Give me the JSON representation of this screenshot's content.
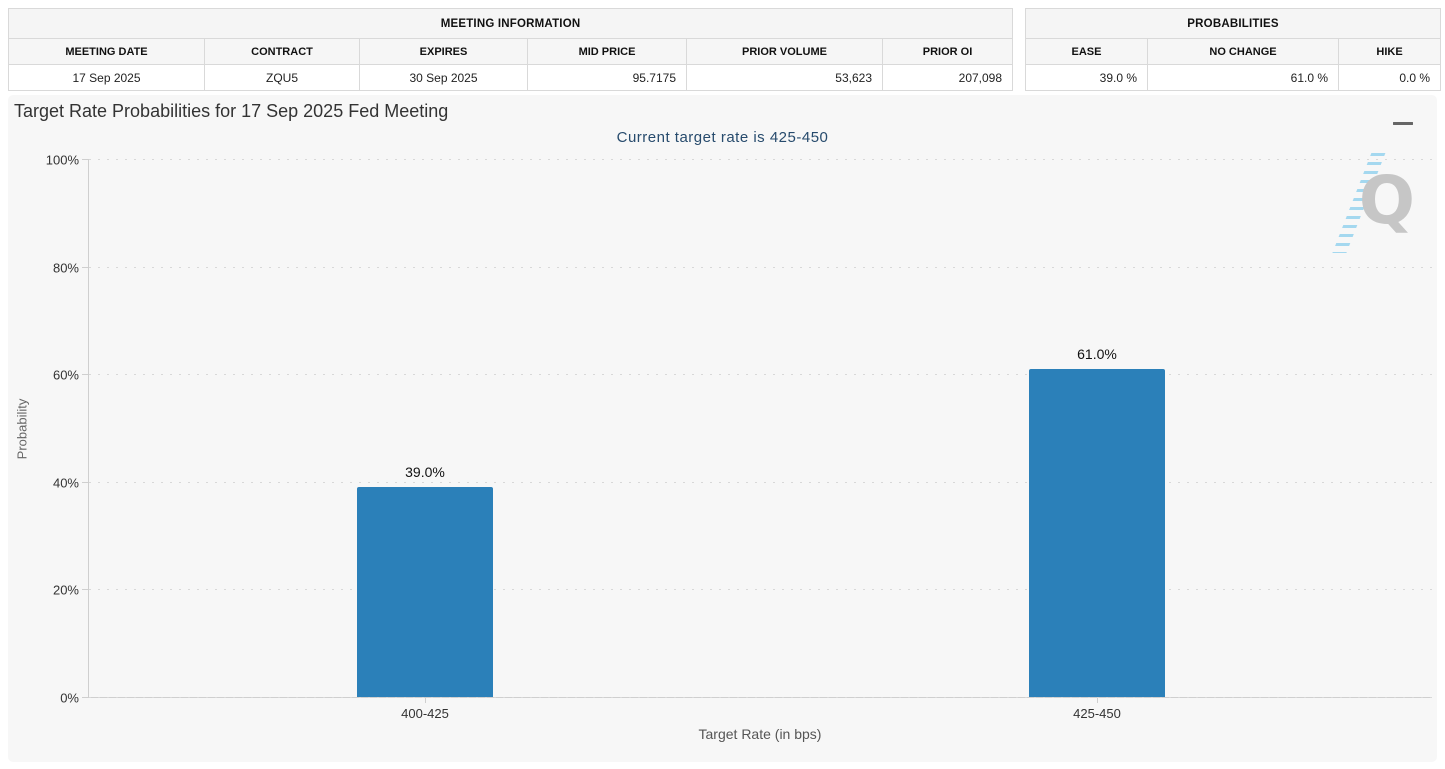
{
  "meeting_information": {
    "title": "MEETING INFORMATION",
    "columns": [
      "MEETING DATE",
      "CONTRACT",
      "EXPIRES",
      "MID PRICE",
      "PRIOR VOLUME",
      "PRIOR OI"
    ],
    "values": [
      "17 Sep 2025",
      "ZQU5",
      "30 Sep 2025",
      "95.7175",
      "53,623",
      "207,098"
    ]
  },
  "probabilities": {
    "title": "PROBABILITIES",
    "columns": [
      "EASE",
      "NO CHANGE",
      "HIKE"
    ],
    "values": [
      "39.0 %",
      "61.0 %",
      "0.0 %"
    ]
  },
  "chart_data": {
    "type": "bar",
    "title": "Target Rate Probabilities for 17 Sep 2025 Fed Meeting",
    "subtitle": "Current target rate is 425-450",
    "categories": [
      "400-425",
      "425-450"
    ],
    "values": [
      39.0,
      61.0
    ],
    "data_labels": [
      "39.0%",
      "61.0%"
    ],
    "xlabel": "Target Rate (in bps)",
    "ylabel": "Probability",
    "ylim": [
      0,
      100
    ],
    "ytick_labels": [
      "0%",
      "20%",
      "40%",
      "60%",
      "80%",
      "100%"
    ],
    "grid": "dotted-horizontal",
    "legend": "none",
    "bar_color": "#2b80b9"
  },
  "icons": {
    "export_menu": "hamburger-icon",
    "watermark_letter": "Q"
  },
  "colors": {
    "bar": "#2b80b9",
    "chart_background": "#f7f7f7",
    "subtitle_text": "#274b6d",
    "title_text": "#333333",
    "grid": "#d8d8d8",
    "axis_line": "#cfcfcf",
    "table_border": "#d9d9d9",
    "table_header_background": "#f5f5f5"
  }
}
